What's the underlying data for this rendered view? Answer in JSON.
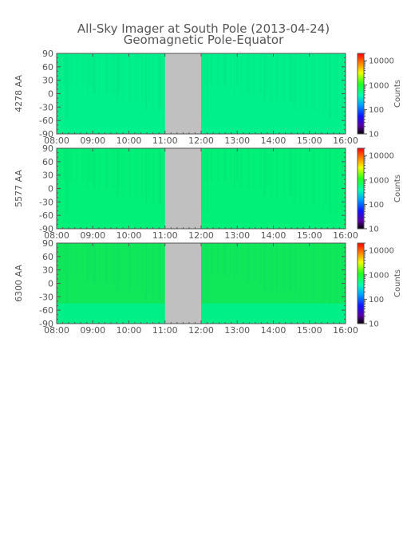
{
  "title": "All-Sky Imager at South Pole (2013-04-24)",
  "subtitle": "Geomagnetic Pole-Equator",
  "chart_data": [
    {
      "type": "heatmap",
      "ylabel": "4278 AA",
      "x_ticks": [
        "08:00",
        "09:00",
        "10:00",
        "11:00",
        "12:00",
        "13:00",
        "14:00",
        "15:00",
        "16:00"
      ],
      "xlim": [
        "08:00",
        "16:00"
      ],
      "y_ticks": [
        90,
        60,
        30,
        0,
        -30,
        -60,
        -90
      ],
      "ylim": [
        -90,
        90
      ],
      "data_gap": [
        "11:00",
        "12:00"
      ],
      "base_color": "#00f08c",
      "colorbar": {
        "label": "Counts",
        "ticks": [
          "10000",
          "1000",
          "100",
          "10"
        ],
        "scale": "log",
        "range": [
          10,
          20000
        ]
      }
    },
    {
      "type": "heatmap",
      "ylabel": "5577 AA",
      "x_ticks": [
        "08:00",
        "09:00",
        "10:00",
        "11:00",
        "12:00",
        "13:00",
        "14:00",
        "15:00",
        "16:00"
      ],
      "xlim": [
        "08:00",
        "16:00"
      ],
      "y_ticks": [
        90,
        60,
        30,
        0,
        -30,
        -60,
        -90
      ],
      "ylim": [
        -90,
        90
      ],
      "data_gap": [
        "11:00",
        "12:00"
      ],
      "base_color": "#00f078",
      "colorbar": {
        "label": "Counts",
        "ticks": [
          "10000",
          "1000",
          "100",
          "10"
        ],
        "scale": "log",
        "range": [
          10,
          20000
        ]
      }
    },
    {
      "type": "heatmap",
      "ylabel": "6300 AA",
      "x_ticks": [
        "08:00",
        "09:00",
        "10:00",
        "11:00",
        "12:00",
        "13:00",
        "14:00",
        "15:00",
        "16:00"
      ],
      "xlim": [
        "08:00",
        "16:00"
      ],
      "y_ticks": [
        90,
        60,
        30,
        0,
        -30,
        -60,
        -90
      ],
      "ylim": [
        -90,
        90
      ],
      "data_gap": [
        "11:00",
        "12:00"
      ],
      "base_color": "#10e85a",
      "colorbar": {
        "label": "Counts",
        "ticks": [
          "10000",
          "1000",
          "100",
          "10"
        ],
        "scale": "log",
        "range": [
          10,
          20000
        ]
      }
    }
  ]
}
